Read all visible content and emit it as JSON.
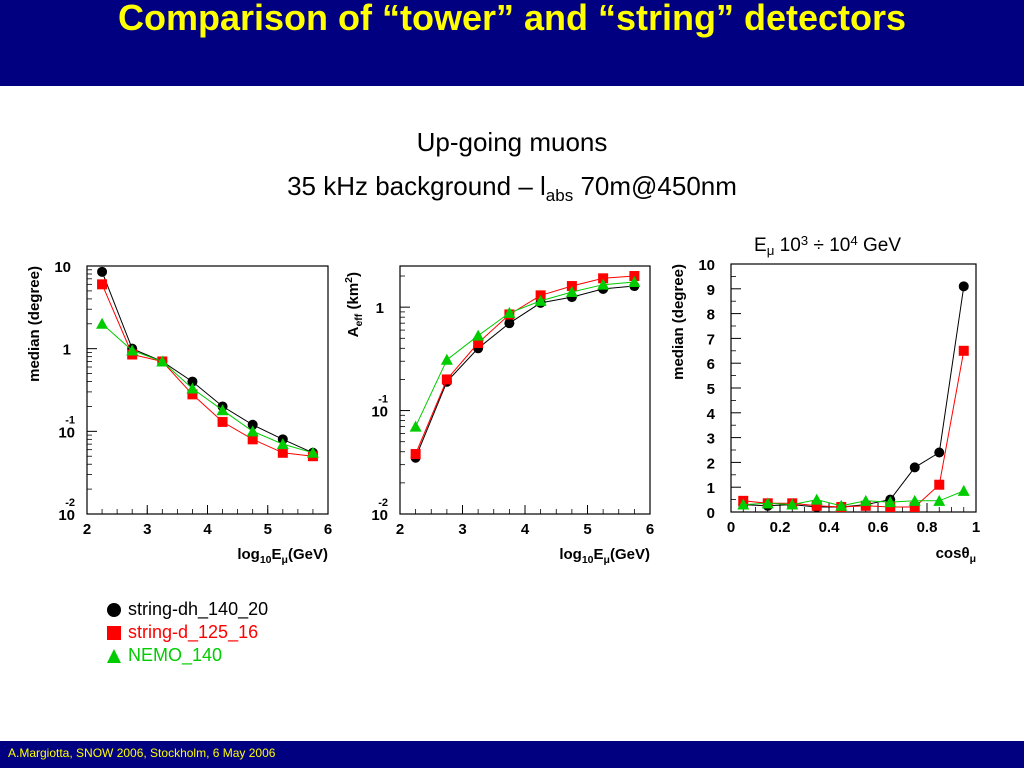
{
  "slide": {
    "title": "Comparison of “tower” and “string” detectors",
    "subtitle_line1": "Up-going muons",
    "subtitle_line2_pre": "35 kHz background – l",
    "subtitle_line2_sub": "abs",
    "subtitle_line2_post": " 70m@450nm",
    "footer": "A.Margiotta, SNOW 2006, Stockholm, 6 May 2006"
  },
  "legend": [
    {
      "label": "string-dh_140_20",
      "color": "#000000",
      "marker": "circle"
    },
    {
      "label": "string-d_125_16",
      "color": "#ff0000",
      "marker": "square"
    },
    {
      "label": "NEMO_140",
      "color": "#00cc00",
      "marker": "triangle"
    }
  ],
  "chart_data": [
    {
      "type": "line",
      "xlabel": "log10Eμ(GeV)",
      "ylabel": "median (degree)",
      "yscale": "log",
      "xlim": [
        2,
        6
      ],
      "ylim": [
        0.01,
        10
      ],
      "xticks": [
        "2",
        "3",
        "4",
        "5",
        "6"
      ],
      "yticks": [
        "10^-2",
        "10^-1",
        "1",
        "10"
      ],
      "x": [
        2.25,
        2.75,
        3.25,
        3.75,
        4.25,
        4.75,
        5.25,
        5.75
      ],
      "series": [
        {
          "name": "string-dh_140_20",
          "color": "#000000",
          "marker": "circle",
          "values": [
            8.5,
            1.0,
            0.7,
            0.4,
            0.2,
            0.12,
            0.08,
            0.055
          ]
        },
        {
          "name": "string-d_125_16",
          "color": "#ff0000",
          "marker": "square",
          "values": [
            6.0,
            0.85,
            0.7,
            0.28,
            0.13,
            0.08,
            0.055,
            0.05
          ]
        },
        {
          "name": "NEMO_140",
          "color": "#00cc00",
          "marker": "triangle",
          "values": [
            2.0,
            0.95,
            0.7,
            0.33,
            0.18,
            0.1,
            0.07,
            0.055
          ]
        }
      ]
    },
    {
      "type": "line",
      "xlabel": "log10Eμ(GeV)",
      "ylabel": "Aeff (km2)",
      "yscale": "log",
      "xlim": [
        2,
        6
      ],
      "ylim": [
        0.01,
        2.5
      ],
      "xticks": [
        "2",
        "3",
        "4",
        "5",
        "6"
      ],
      "yticks": [
        "10^-2",
        "10^-1",
        "1"
      ],
      "x": [
        2.25,
        2.75,
        3.25,
        3.75,
        4.25,
        4.75,
        5.25,
        5.75
      ],
      "series": [
        {
          "name": "string-dh_140_20",
          "color": "#000000",
          "marker": "circle",
          "values": [
            0.035,
            0.19,
            0.4,
            0.7,
            1.1,
            1.25,
            1.5,
            1.6
          ]
        },
        {
          "name": "string-d_125_16",
          "color": "#ff0000",
          "marker": "square",
          "values": [
            0.038,
            0.2,
            0.45,
            0.85,
            1.3,
            1.6,
            1.9,
            2.0
          ]
        },
        {
          "name": "NEMO_140",
          "color": "#00cc00",
          "marker": "triangle",
          "values": [
            0.07,
            0.31,
            0.53,
            0.88,
            1.15,
            1.4,
            1.65,
            1.75
          ]
        }
      ]
    },
    {
      "type": "line",
      "title_pre": "E",
      "title_sub": "μ",
      "title_mid": " 10",
      "title_sup1": "3",
      "title_div": " ÷ ",
      "title_mid2": "10",
      "title_sup2": "4",
      "title_post": " GeV",
      "xlabel": "cosθμ",
      "ylabel": "median (degree)",
      "xlim": [
        0,
        1
      ],
      "ylim": [
        0,
        10
      ],
      "xticks": [
        "0",
        "0.2",
        "0.4",
        "0.6",
        "0.8",
        "1"
      ],
      "yticks": [
        "0",
        "1",
        "2",
        "3",
        "4",
        "5",
        "6",
        "7",
        "8",
        "9",
        "10"
      ],
      "x": [
        0.05,
        0.15,
        0.25,
        0.35,
        0.45,
        0.55,
        0.65,
        0.75,
        0.85,
        0.95
      ],
      "series": [
        {
          "name": "string-dh_140_20",
          "color": "#000000",
          "marker": "circle",
          "values": [
            0.3,
            0.25,
            0.3,
            0.2,
            0.2,
            0.3,
            0.5,
            1.8,
            2.4,
            9.1
          ]
        },
        {
          "name": "string-d_125_16",
          "color": "#ff0000",
          "marker": "square",
          "values": [
            0.45,
            0.35,
            0.35,
            0.25,
            0.2,
            0.25,
            0.2,
            0.2,
            1.1,
            6.5
          ]
        },
        {
          "name": "NEMO_140",
          "color": "#00cc00",
          "marker": "triangle",
          "values": [
            0.3,
            0.35,
            0.3,
            0.5,
            0.25,
            0.45,
            0.4,
            0.45,
            0.45,
            0.85
          ]
        }
      ]
    }
  ]
}
